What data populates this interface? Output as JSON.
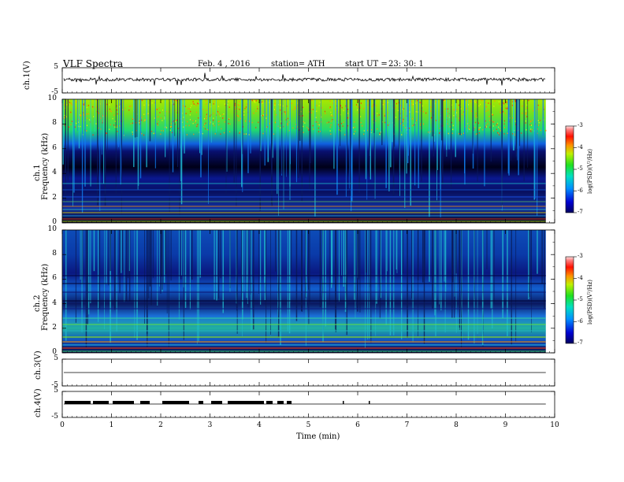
{
  "header": {
    "title": "VLF  Spectra",
    "date": "Feb. 4  , 2016",
    "station": "station= ATH",
    "start_label": "start  UT  =",
    "start_time": "23: 30: 1"
  },
  "colorbar": {
    "label": "log(PSD)(V²/Hz)",
    "ticks": [
      "-3",
      "-4",
      "-5",
      "-6",
      "-7"
    ]
  },
  "chart_data": [
    {
      "id": "ch1-waveform",
      "type": "line",
      "ylabel": "ch.1(V)",
      "ylim": [
        -5,
        5
      ],
      "yticks": [
        "5",
        "-5"
      ],
      "xlim": [
        0,
        10
      ],
      "description_values": "noisy waveform around about -0.3 V with spikes"
    },
    {
      "id": "ch1-spectrogram",
      "type": "heatmap",
      "ylabel_channel": "ch.1",
      "ylabel": "Frequency  (kHz)",
      "ylim": [
        0,
        10
      ],
      "yticks": [
        "0",
        "2",
        "4",
        "6",
        "8",
        "10"
      ],
      "xlim": [
        0,
        9.8
      ],
      "color_scale_label": "log(PSD)(V²/Hz)",
      "color_range": [
        -7,
        -3
      ]
    },
    {
      "id": "ch2-spectrogram",
      "type": "heatmap",
      "ylabel_channel": "ch.2",
      "ylabel": "Frequency  (kHz)",
      "ylim": [
        0,
        10
      ],
      "yticks": [
        "0",
        "2",
        "4",
        "6",
        "8",
        "10"
      ],
      "xlim": [
        0,
        9.8
      ],
      "color_scale_label": "log(PSD)(V²/Hz)",
      "color_range": [
        -7,
        -3
      ]
    },
    {
      "id": "ch3-waveform",
      "type": "line",
      "ylabel": "ch.3(V)",
      "ylim": [
        -5,
        5
      ],
      "yticks": [
        "5",
        "-5"
      ],
      "value": 0
    },
    {
      "id": "ch4-waveform",
      "type": "line",
      "ylabel": "ch.4(V)",
      "ylim": [
        -5,
        5
      ],
      "yticks": [
        "5",
        "-5"
      ],
      "value": 0
    }
  ],
  "xaxis": {
    "label": "Time  (min)",
    "ticks": [
      "0",
      "1",
      "2",
      "3",
      "4",
      "5",
      "6",
      "7",
      "8",
      "9",
      "10"
    ],
    "range": [
      0,
      10
    ]
  }
}
